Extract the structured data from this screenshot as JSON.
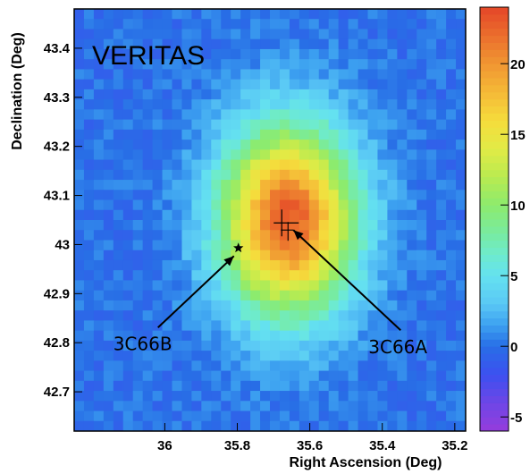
{
  "chart_data": {
    "type": "heatmap",
    "title": "VERITAS",
    "xlabel": "Right Ascension (Deg)",
    "ylabel": "Declination (Deg)",
    "xlim": [
      36.25,
      35.17
    ],
    "ylim": [
      42.62,
      43.48
    ],
    "x_ticks": [
      36,
      35.8,
      35.6,
      35.4,
      35.2
    ],
    "x_tick_labels": [
      "36",
      "35.8",
      "35.6",
      "35.4",
      "35.2"
    ],
    "y_ticks": [
      42.7,
      42.8,
      42.9,
      43,
      43.1,
      43.2,
      43.3,
      43.4
    ],
    "y_tick_labels": [
      "42.7",
      "42.8",
      "42.9",
      "43",
      "43.1",
      "43.2",
      "43.3",
      "43.4"
    ],
    "colorbar": {
      "range": [
        -6,
        24
      ],
      "ticks": [
        -5,
        0,
        5,
        10,
        15,
        20
      ],
      "tick_labels": [
        "-5",
        "0",
        "5",
        "10",
        "15",
        "20"
      ]
    },
    "peak_value": 23,
    "peak_position": {
      "ra": 35.66,
      "dec": 43.05
    },
    "sources": [
      {
        "name": "3C66A",
        "ra": 35.665,
        "dec": 43.035,
        "marker": "cross",
        "label": "3C66A"
      },
      {
        "name": "3C66B",
        "ra": 35.797,
        "dec": 42.993,
        "marker": "star",
        "label": "3C66B"
      }
    ]
  }
}
